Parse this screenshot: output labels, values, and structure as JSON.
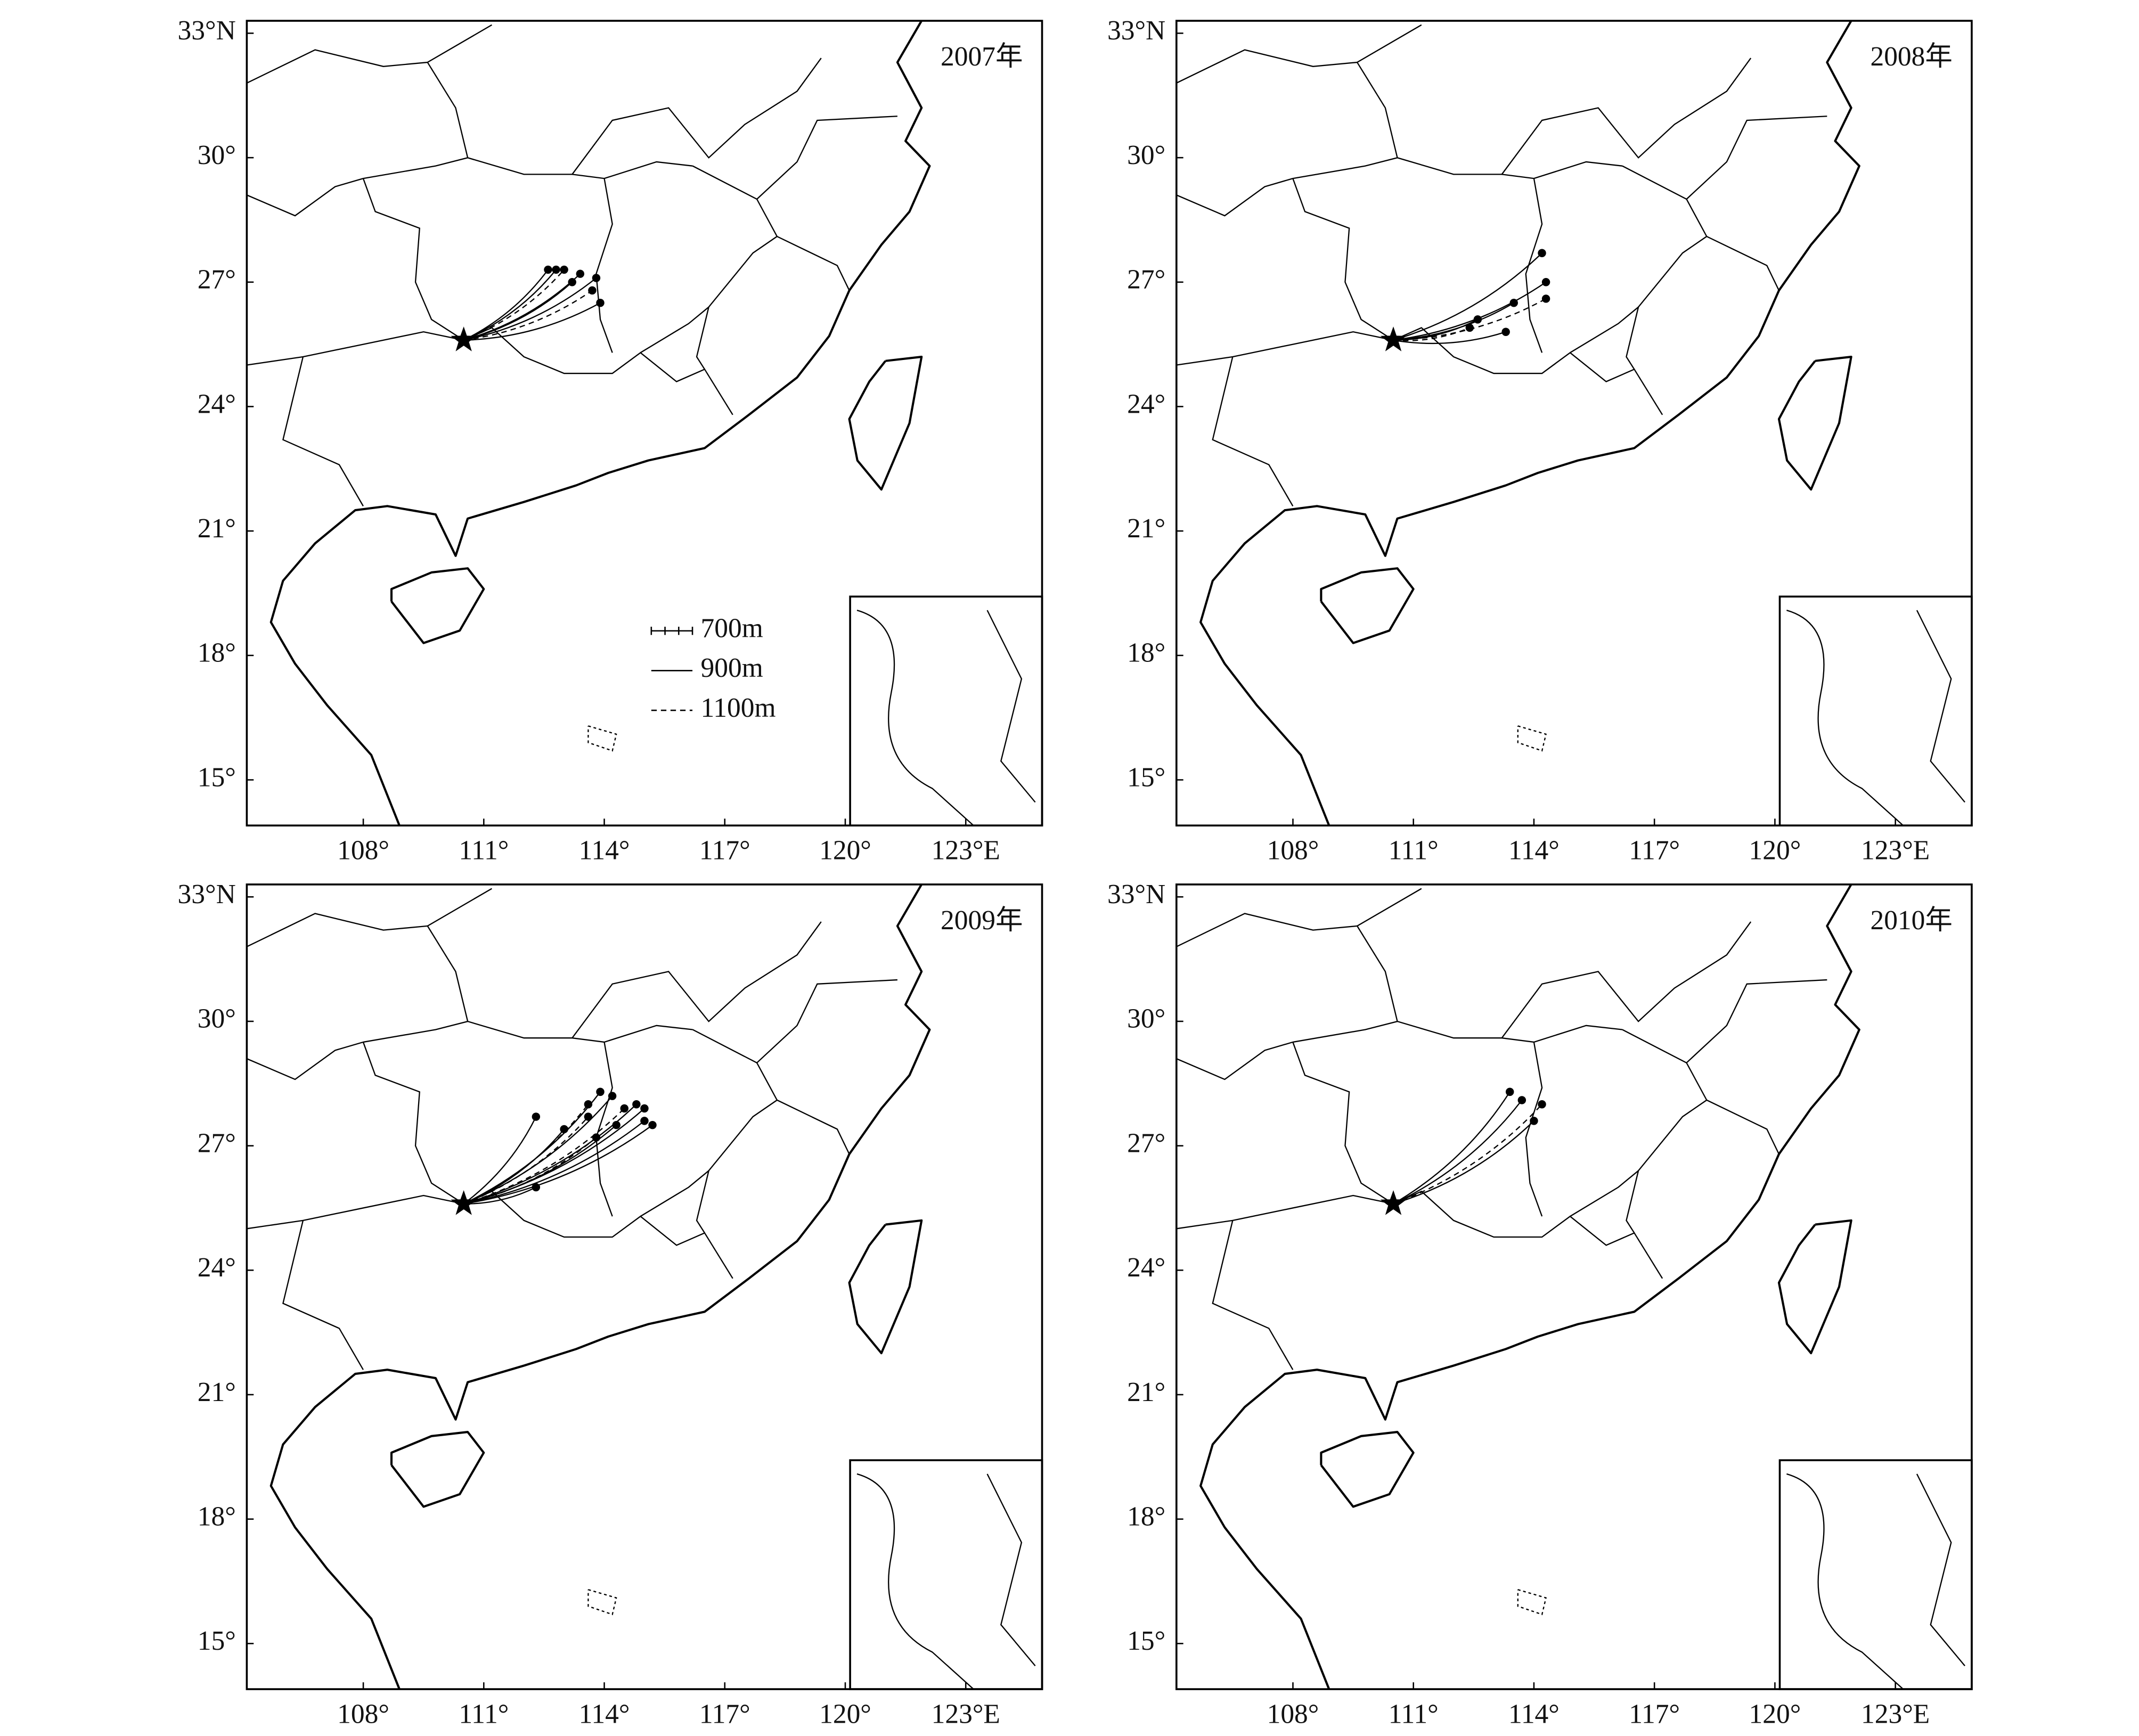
{
  "panels": [
    {
      "label": "2007年",
      "xlim": [
        105.1,
        124.9
      ],
      "ylim": [
        13.9,
        33.3
      ],
      "xticks": [
        {
          "value": 108,
          "label": "108°"
        },
        {
          "value": 111,
          "label": "111°"
        },
        {
          "value": 114,
          "label": "114°"
        },
        {
          "value": 117,
          "label": "117°"
        },
        {
          "value": 120,
          "label": "120°"
        },
        {
          "value": 123,
          "label": "123°E"
        }
      ],
      "yticks": [
        {
          "value": 33,
          "label": "33°N"
        },
        {
          "value": 30,
          "label": "30°"
        },
        {
          "value": 27,
          "label": "27°"
        },
        {
          "value": 24,
          "label": "24°"
        },
        {
          "value": 21,
          "label": "21°"
        },
        {
          "value": 18,
          "label": "18°"
        },
        {
          "value": 15,
          "label": "15°"
        }
      ],
      "origin": {
        "lon": 110.5,
        "lat": 25.6
      },
      "trajectories": [
        {
          "lon": 112.6,
          "lat": 27.3
        },
        {
          "lon": 112.8,
          "lat": 27.3
        },
        {
          "lon": 113.0,
          "lat": 27.3
        },
        {
          "lon": 113.4,
          "lat": 27.2
        },
        {
          "lon": 113.2,
          "lat": 27.0
        },
        {
          "lon": 113.7,
          "lat": 26.8
        },
        {
          "lon": 113.9,
          "lat": 26.5
        },
        {
          "lon": 113.8,
          "lat": 27.1
        }
      ],
      "legend": [
        {
          "name": "700m",
          "style": "ticked"
        },
        {
          "name": "900m",
          "style": "solid"
        },
        {
          "name": "1100m",
          "style": "dashed"
        }
      ]
    },
    {
      "label": "2008年",
      "xlim": [
        105.1,
        124.9
      ],
      "ylim": [
        13.9,
        33.3
      ],
      "xticks": [
        {
          "value": 108,
          "label": "108°"
        },
        {
          "value": 111,
          "label": "111°"
        },
        {
          "value": 114,
          "label": "114°"
        },
        {
          "value": 117,
          "label": "117°"
        },
        {
          "value": 120,
          "label": "120°"
        },
        {
          "value": 123,
          "label": "123°E"
        }
      ],
      "yticks": [
        {
          "value": 33,
          "label": "33°N"
        },
        {
          "value": 30,
          "label": "30°"
        },
        {
          "value": 27,
          "label": "27°"
        },
        {
          "value": 24,
          "label": "24°"
        },
        {
          "value": 21,
          "label": "21°"
        },
        {
          "value": 18,
          "label": "18°"
        },
        {
          "value": 15,
          "label": "15°"
        }
      ],
      "origin": {
        "lon": 110.5,
        "lat": 25.6
      },
      "trajectories": [
        {
          "lon": 114.2,
          "lat": 27.7
        },
        {
          "lon": 114.3,
          "lat": 27.0
        },
        {
          "lon": 114.3,
          "lat": 26.6
        },
        {
          "lon": 113.5,
          "lat": 26.5
        },
        {
          "lon": 112.6,
          "lat": 26.1
        },
        {
          "lon": 112.4,
          "lat": 25.9
        },
        {
          "lon": 113.3,
          "lat": 25.8
        }
      ]
    },
    {
      "label": "2009年",
      "xlim": [
        105.1,
        124.9
      ],
      "ylim": [
        13.9,
        33.3
      ],
      "xticks": [
        {
          "value": 108,
          "label": "108°"
        },
        {
          "value": 111,
          "label": "111°"
        },
        {
          "value": 114,
          "label": "114°"
        },
        {
          "value": 117,
          "label": "117°"
        },
        {
          "value": 120,
          "label": "120°"
        },
        {
          "value": 123,
          "label": "123°E"
        }
      ],
      "yticks": [
        {
          "value": 33,
          "label": "33°N"
        },
        {
          "value": 30,
          "label": "30°"
        },
        {
          "value": 27,
          "label": "27°"
        },
        {
          "value": 24,
          "label": "24°"
        },
        {
          "value": 21,
          "label": "21°"
        },
        {
          "value": 18,
          "label": "18°"
        },
        {
          "value": 15,
          "label": "15°"
        }
      ],
      "origin": {
        "lon": 110.5,
        "lat": 25.6
      },
      "trajectories": [
        {
          "lon": 113.9,
          "lat": 28.3
        },
        {
          "lon": 114.2,
          "lat": 28.2
        },
        {
          "lon": 113.6,
          "lat": 28.0
        },
        {
          "lon": 114.8,
          "lat": 28.0
        },
        {
          "lon": 115.0,
          "lat": 27.9
        },
        {
          "lon": 114.5,
          "lat": 27.9
        },
        {
          "lon": 112.3,
          "lat": 27.7
        },
        {
          "lon": 114.3,
          "lat": 27.5
        },
        {
          "lon": 113.8,
          "lat": 27.2
        },
        {
          "lon": 115.2,
          "lat": 27.5
        },
        {
          "lon": 115.0,
          "lat": 27.6
        },
        {
          "lon": 113.6,
          "lat": 27.7
        },
        {
          "lon": 113.0,
          "lat": 27.4
        },
        {
          "lon": 112.3,
          "lat": 26.0
        }
      ]
    },
    {
      "label": "2010年",
      "xlim": [
        105.1,
        124.9
      ],
      "ylim": [
        13.9,
        33.3
      ],
      "xticks": [
        {
          "value": 108,
          "label": "108°"
        },
        {
          "value": 111,
          "label": "111°"
        },
        {
          "value": 114,
          "label": "114°"
        },
        {
          "value": 117,
          "label": "117°"
        },
        {
          "value": 120,
          "label": "120°"
        },
        {
          "value": 123,
          "label": "123°E"
        }
      ],
      "yticks": [
        {
          "value": 33,
          "label": "33°N"
        },
        {
          "value": 30,
          "label": "30°"
        },
        {
          "value": 27,
          "label": "27°"
        },
        {
          "value": 24,
          "label": "24°"
        },
        {
          "value": 21,
          "label": "21°"
        },
        {
          "value": 18,
          "label": "18°"
        },
        {
          "value": 15,
          "label": "15°"
        }
      ],
      "origin": {
        "lon": 110.5,
        "lat": 25.6
      },
      "trajectories": [
        {
          "lon": 113.4,
          "lat": 28.3
        },
        {
          "lon": 113.7,
          "lat": 28.1
        },
        {
          "lon": 114.2,
          "lat": 28.0
        },
        {
          "lon": 114.0,
          "lat": 27.6
        }
      ]
    }
  ]
}
